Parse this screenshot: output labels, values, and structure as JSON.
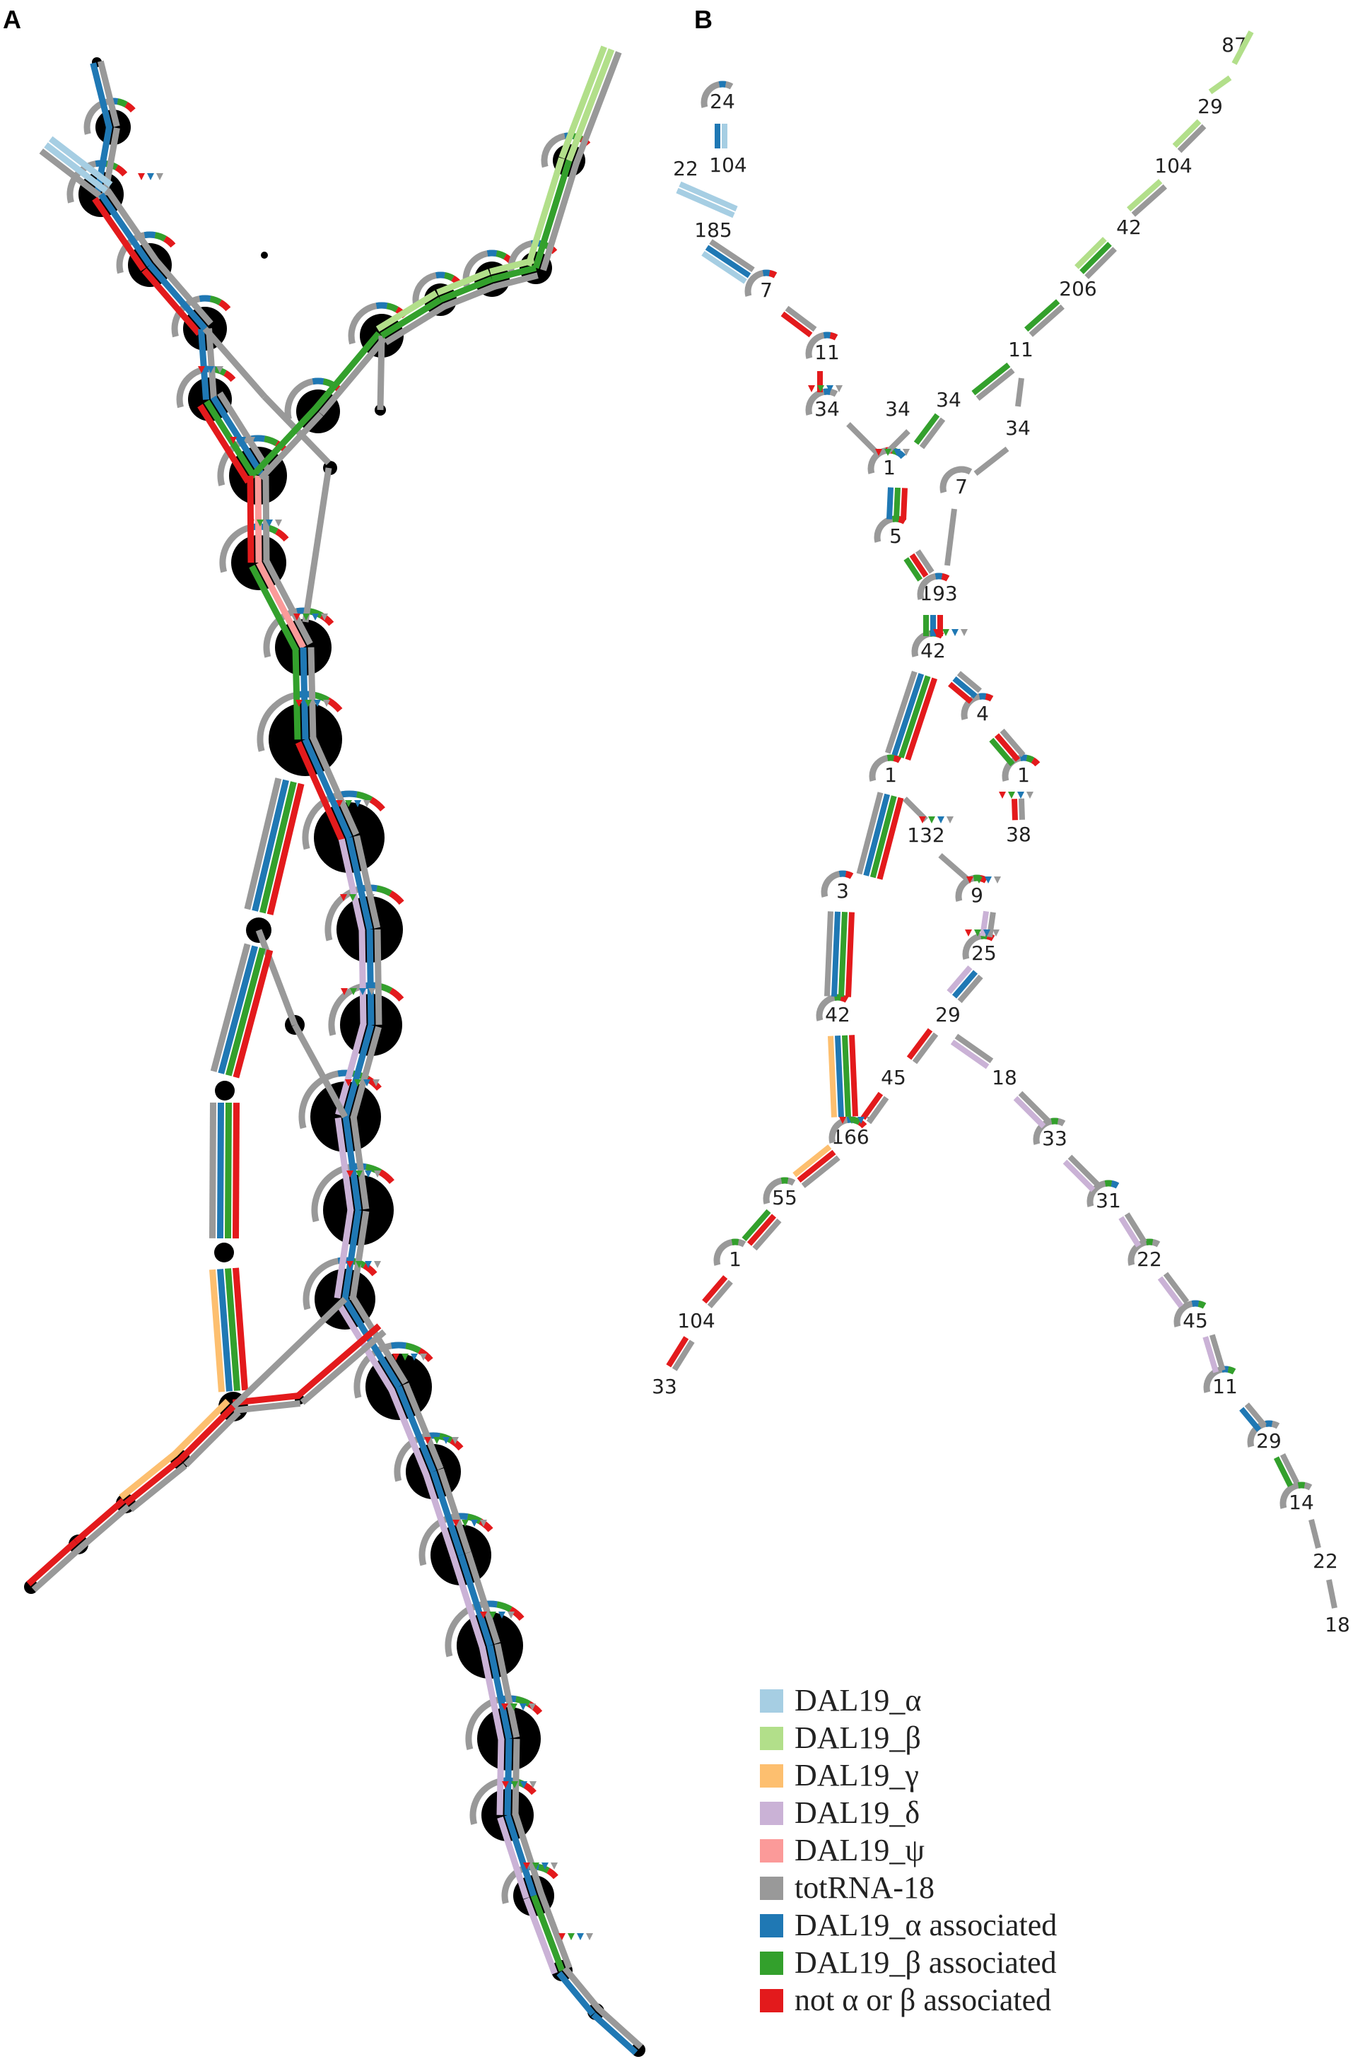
{
  "panels": [
    {
      "letter": "A"
    },
    {
      "letter": "B"
    }
  ],
  "colors": {
    "alpha": "#a6cee3",
    "beta": "#b2df8a",
    "gamma": "#fdbf6f",
    "delta": "#cab2d6",
    "psi": "#fb9a99",
    "tot": "#999999",
    "alpha_assoc": "#1f78b4",
    "beta_assoc": "#33a02c",
    "other": "#e31a1c"
  },
  "legend": [
    {
      "label": "DAL19_α",
      "color": "#a6cee3"
    },
    {
      "label": "DAL19_β",
      "color": "#b2df8a"
    },
    {
      "label": "DAL19_γ",
      "color": "#fdbf6f"
    },
    {
      "label": "DAL19_δ",
      "color": "#cab2d6"
    },
    {
      "label": "DAL19_ψ",
      "color": "#fb9a99"
    },
    {
      "label": "totRNA-18",
      "color": "#999999"
    },
    {
      "label": "DAL19_α associated",
      "color": "#1f78b4"
    },
    {
      "label": "DAL19_β associated",
      "color": "#33a02c"
    },
    {
      "label": "not α or β associated",
      "color": "#e31a1c"
    }
  ],
  "panel_b_labels": [
    "87",
    "29",
    "104",
    "42",
    "206",
    "11",
    "34",
    "34",
    "7",
    "24",
    "22",
    "104",
    "185",
    "7",
    "11",
    "34",
    "34",
    "1",
    "5",
    "193",
    "42",
    "4",
    "1",
    "1",
    "132",
    "38",
    "3",
    "9",
    "25",
    "42",
    "29",
    "45",
    "18",
    "166",
    "33",
    "55",
    "31",
    "1",
    "22",
    "104",
    "45",
    "33",
    "11",
    "29",
    "14",
    "22",
    "18"
  ]
}
